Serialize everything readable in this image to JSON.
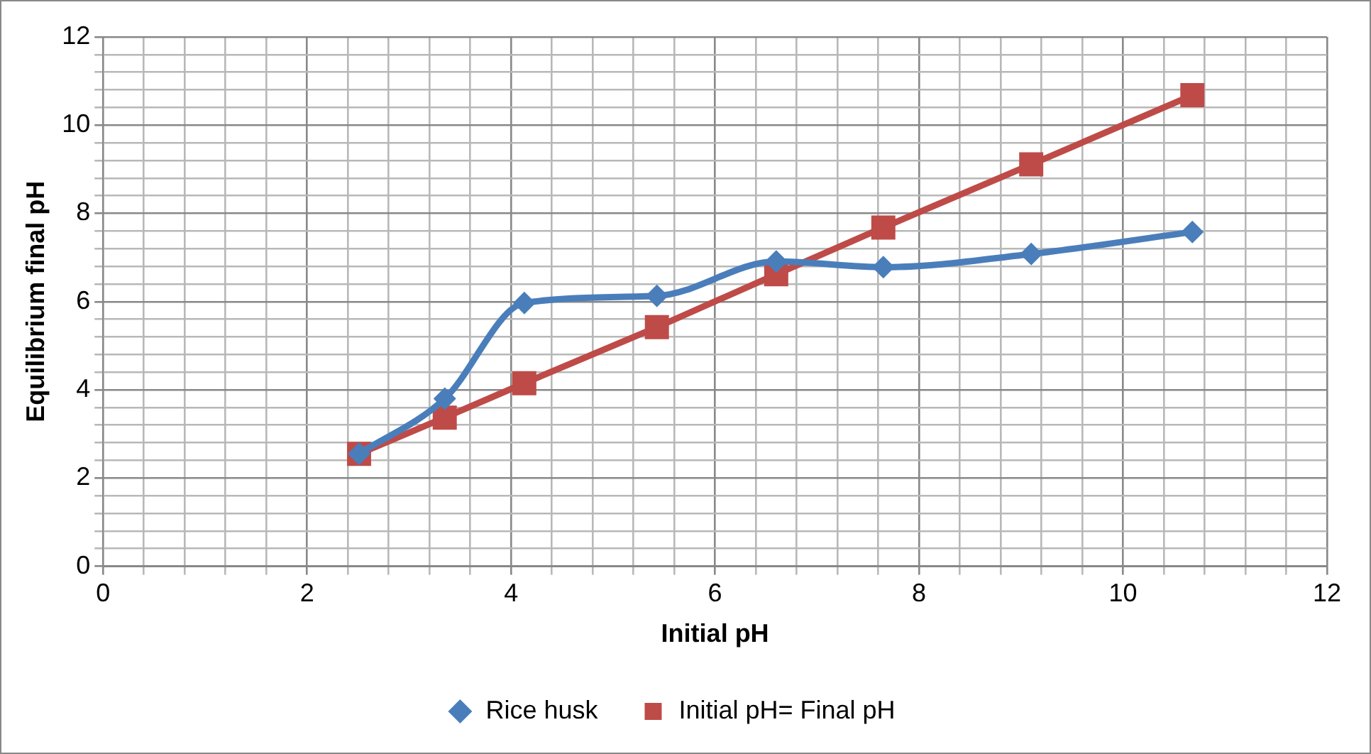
{
  "chart_data": {
    "type": "line",
    "xlabel": "Initial pH",
    "ylabel": "Equilibrium final pH",
    "x": [
      2.51,
      3.35,
      4.13,
      5.43,
      6.6,
      7.65,
      9.1,
      10.68
    ],
    "series": [
      {
        "name": "Rice husk",
        "color": "#4a7ebb",
        "marker": "diamond",
        "values": [
          2.55,
          3.8,
          5.97,
          6.13,
          6.91,
          6.78,
          7.08,
          7.58
        ]
      },
      {
        "name": "Initial pH= Final pH",
        "color": "#be4b48",
        "marker": "square",
        "values": [
          2.55,
          3.37,
          4.15,
          5.42,
          6.62,
          7.68,
          9.11,
          10.68
        ]
      }
    ],
    "xlim": [
      0,
      12
    ],
    "xticks": [
      0,
      {
        "value": 0.4,
        "label": null
      },
      {
        "value": 0.8,
        "label": null
      },
      {
        "value": 1.2,
        "label": null
      },
      {
        "value": 1.6,
        "label": null
      },
      2,
      {
        "value": 2.4,
        "label": null
      },
      {
        "value": 2.8,
        "label": null
      },
      {
        "value": 3.2,
        "label": null
      },
      {
        "value": 3.6,
        "label": null
      },
      4,
      {
        "value": 4.4,
        "label": null
      },
      {
        "value": 4.8,
        "label": null
      },
      {
        "value": 5.2,
        "label": null
      },
      {
        "value": 5.6,
        "label": null
      },
      6,
      {
        "value": 6.4,
        "label": null
      },
      {
        "value": 6.8,
        "label": null
      },
      {
        "value": 7.2,
        "label": null
      },
      {
        "value": 7.6,
        "label": null
      },
      8,
      {
        "value": 8.4,
        "label": null
      },
      {
        "value": 8.8,
        "label": null
      },
      {
        "value": 9.2,
        "label": null
      },
      {
        "value": 9.6,
        "label": null
      },
      10,
      {
        "value": 10.4,
        "label": null
      },
      {
        "value": 10.8,
        "label": null
      },
      {
        "value": 11.2,
        "label": null
      },
      {
        "value": 11.6,
        "label": null
      },
      12
    ],
    "ylim": [
      0,
      12
    ],
    "yticks": [
      0,
      {
        "value": 0.4,
        "label": null
      },
      {
        "value": 0.8,
        "label": null
      },
      {
        "value": 1.2,
        "label": null
      },
      {
        "value": 1.6,
        "label": null
      },
      2,
      {
        "value": 2.4,
        "label": null
      },
      {
        "value": 2.8,
        "label": null
      },
      {
        "value": 3.2,
        "label": null
      },
      {
        "value": 3.6,
        "label": null
      },
      4,
      {
        "value": 4.4,
        "label": null
      },
      {
        "value": 4.8,
        "label": null
      },
      {
        "value": 5.2,
        "label": null
      },
      {
        "value": 5.6,
        "label": null
      },
      6,
      {
        "value": 6.4,
        "label": null
      },
      {
        "value": 6.8,
        "label": null
      },
      {
        "value": 7.2,
        "label": null
      },
      {
        "value": 7.6,
        "label": null
      },
      8,
      {
        "value": 8.4,
        "label": null
      },
      {
        "value": 8.8,
        "label": null
      },
      {
        "value": 9.2,
        "label": null
      },
      {
        "value": 9.6,
        "label": null
      },
      10,
      {
        "value": 10.4,
        "label": null
      },
      {
        "value": 10.8,
        "label": null
      },
      {
        "value": 11.2,
        "label": null
      },
      {
        "value": 11.6,
        "label": null
      },
      12
    ],
    "grid": true,
    "legend": "bottom",
    "line_style": "solid"
  }
}
